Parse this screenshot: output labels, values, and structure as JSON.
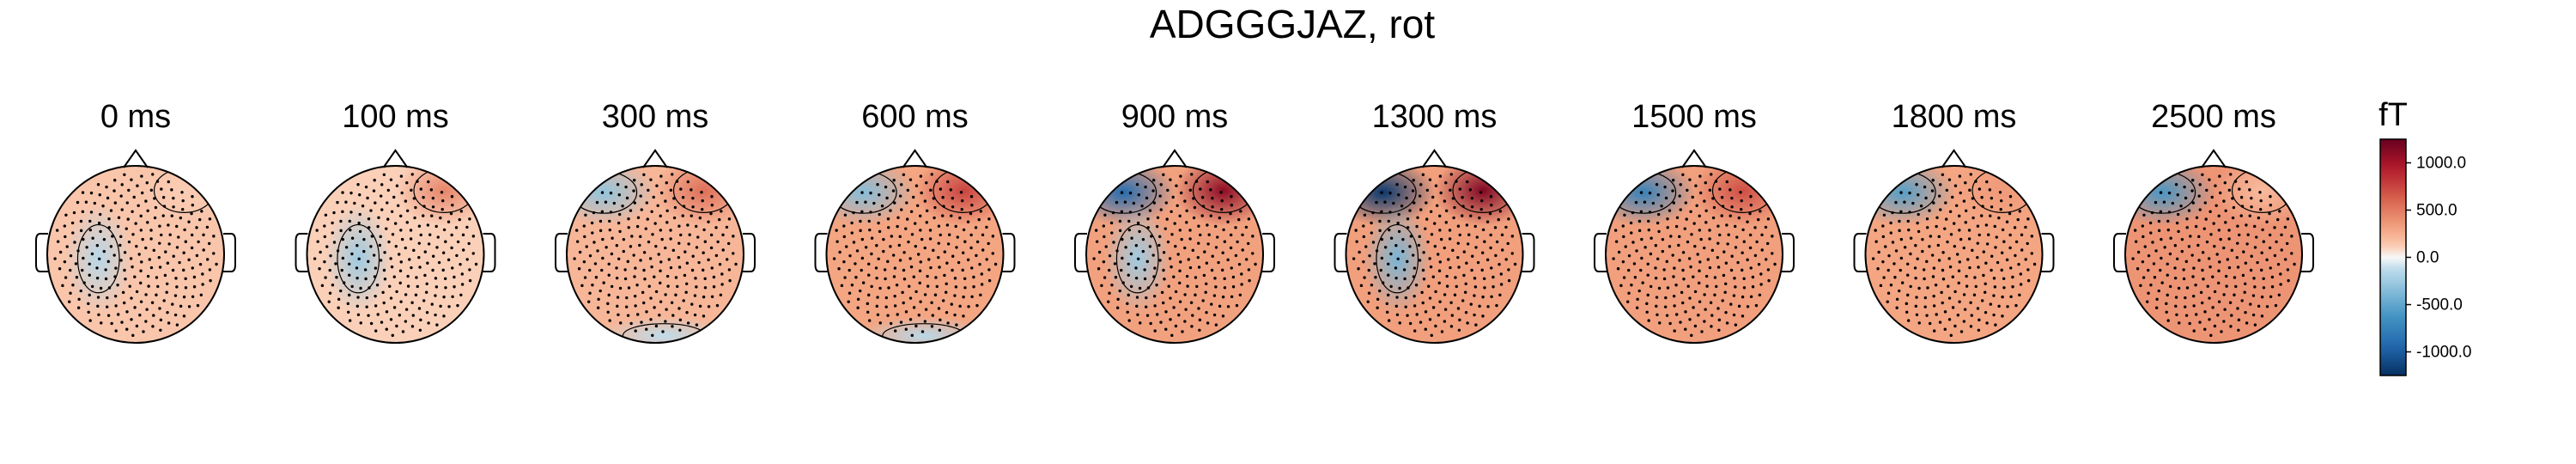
{
  "chart_data": {
    "type": "topomap",
    "title": "ADGGGJAZ, rot",
    "unit": "fT",
    "colormap": "RdBu_r",
    "clim": [
      -1250,
      1250
    ],
    "colorbar": {
      "ticks": [
        1000,
        500,
        0,
        -500,
        -1000
      ],
      "tick_labels": [
        "1000.0",
        "500.0",
        "0.0",
        "-500.0",
        "-1000.0"
      ]
    },
    "sensors": "dots",
    "panels": [
      {
        "time_label": "0 ms",
        "time_ms": 0,
        "blobs": [
          {
            "pos": "front-right",
            "value": 120
          },
          {
            "pos": "left",
            "value": -150
          }
        ],
        "baseline": 150
      },
      {
        "time_label": "100 ms",
        "time_ms": 100,
        "blobs": [
          {
            "pos": "front-right",
            "value": 450
          },
          {
            "pos": "left",
            "value": -250
          }
        ],
        "baseline": 100
      },
      {
        "time_label": "300 ms",
        "time_ms": 300,
        "blobs": [
          {
            "pos": "front-right",
            "value": 550
          },
          {
            "pos": "front-left",
            "value": -300
          },
          {
            "pos": "back",
            "value": -120
          }
        ],
        "baseline": 220
      },
      {
        "time_label": "600 ms",
        "time_ms": 600,
        "blobs": [
          {
            "pos": "front-right",
            "value": 750
          },
          {
            "pos": "front-left",
            "value": -350
          },
          {
            "pos": "back",
            "value": -150
          }
        ],
        "baseline": 300
      },
      {
        "time_label": "900 ms",
        "time_ms": 900,
        "blobs": [
          {
            "pos": "front-right",
            "value": 1100
          },
          {
            "pos": "front-left",
            "value": -900
          },
          {
            "pos": "left",
            "value": -250
          }
        ],
        "baseline": 320
      },
      {
        "time_label": "1300 ms",
        "time_ms": 1300,
        "blobs": [
          {
            "pos": "front-right",
            "value": 1150
          },
          {
            "pos": "front-left",
            "value": -1200
          },
          {
            "pos": "left",
            "value": -400
          }
        ],
        "baseline": 330
      },
      {
        "time_label": "1500 ms",
        "time_ms": 1500,
        "blobs": [
          {
            "pos": "front-right",
            "value": 700
          },
          {
            "pos": "front-left",
            "value": -750
          }
        ],
        "baseline": 330
      },
      {
        "time_label": "1800 ms",
        "time_ms": 1800,
        "blobs": [
          {
            "pos": "front-right",
            "value": 350
          },
          {
            "pos": "front-left",
            "value": -550
          }
        ],
        "baseline": 300
      },
      {
        "time_label": "2500 ms",
        "time_ms": 2500,
        "blobs": [
          {
            "pos": "front-right",
            "value": 200
          },
          {
            "pos": "front-left",
            "value": -600
          }
        ],
        "baseline": 380
      }
    ]
  }
}
